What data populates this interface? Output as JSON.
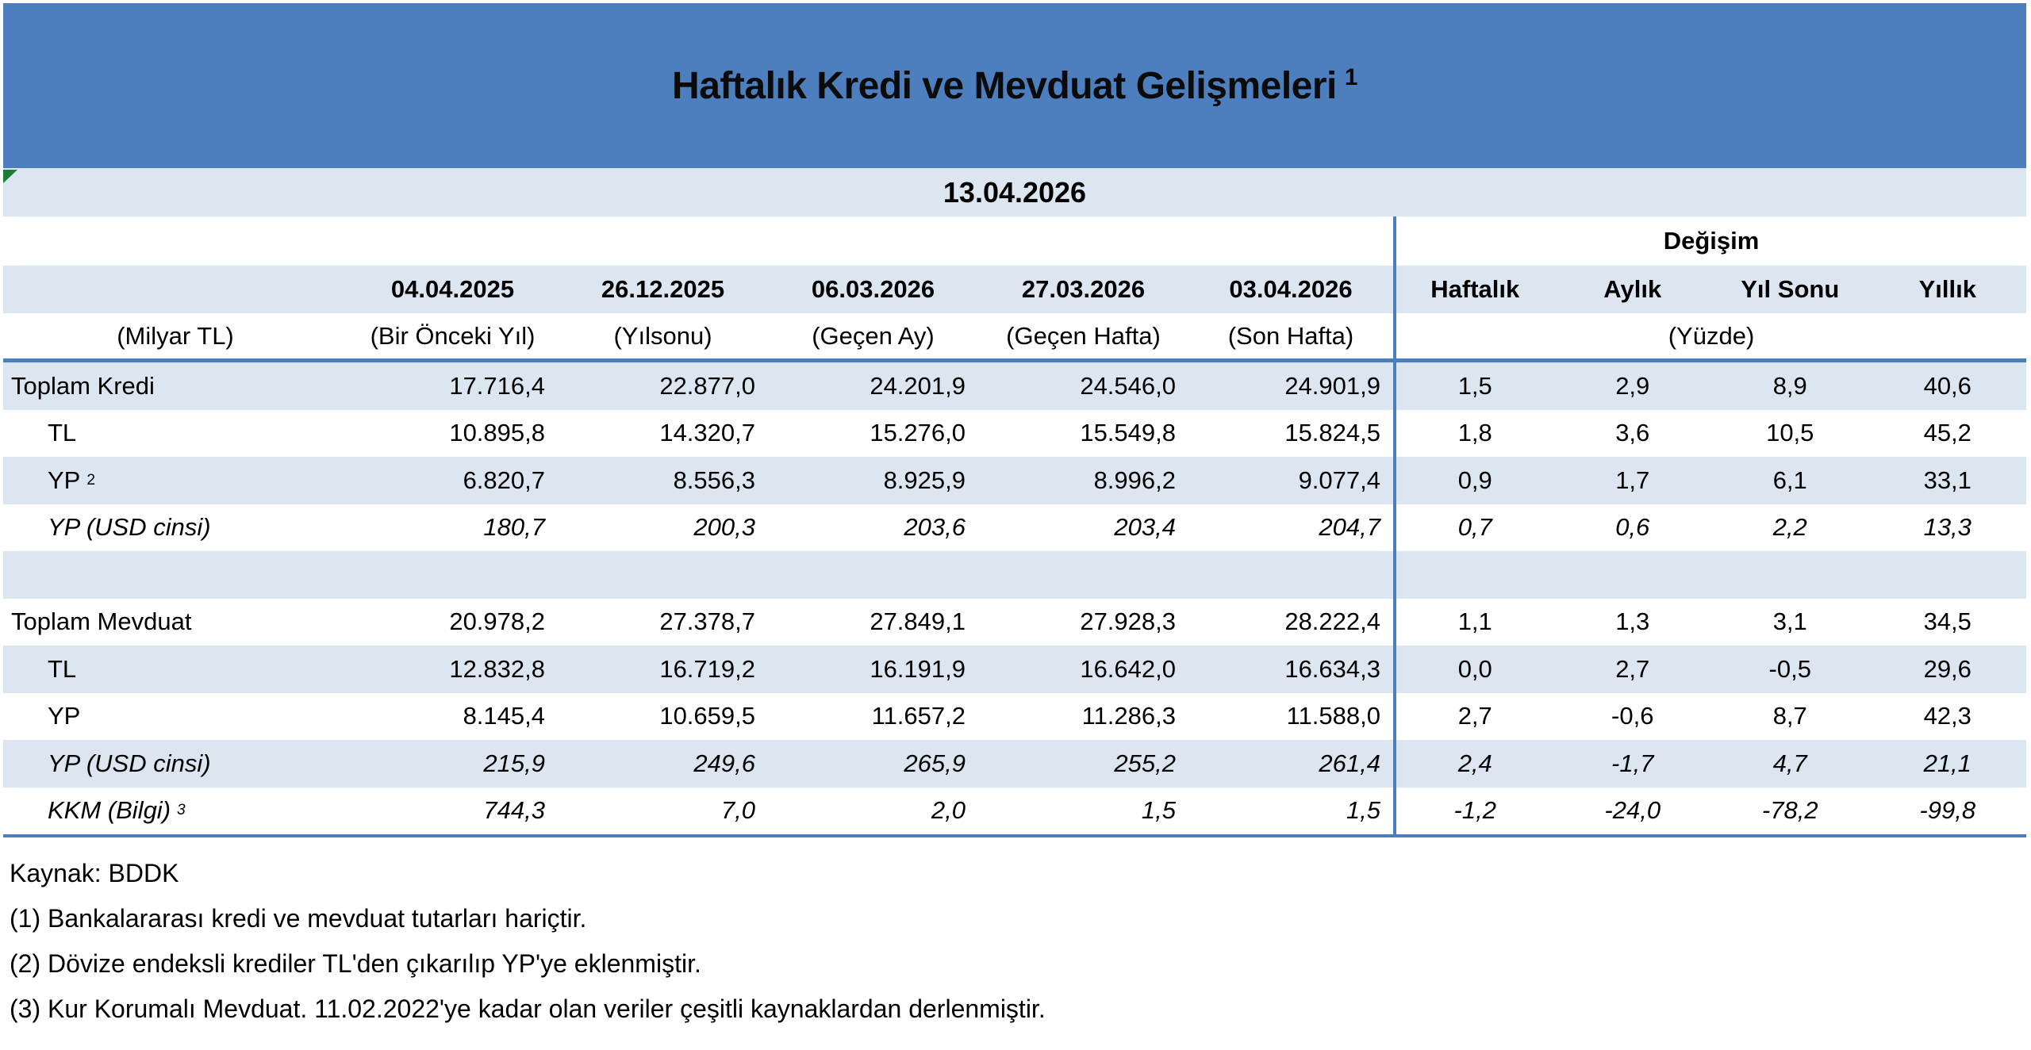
{
  "title": {
    "text": "Haftalık Kredi ve Mevduat Gelişmeleri",
    "superscript": "1"
  },
  "report_date": "13.04.2026",
  "header": {
    "change_group_label": "Değişim",
    "unit_label": "(Milyar TL)",
    "percent_label": "(Yüzde)",
    "date_columns": [
      {
        "date": "04.04.2025",
        "sub": "(Bir Önceki Yıl)"
      },
      {
        "date": "26.12.2025",
        "sub": "(Yılsonu)"
      },
      {
        "date": "06.03.2026",
        "sub": "(Geçen Ay)"
      },
      {
        "date": "27.03.2026",
        "sub": "(Geçen Hafta)"
      },
      {
        "date": "03.04.2026",
        "sub": "(Son Hafta)"
      }
    ],
    "change_columns": [
      "Haftalık",
      "Aylık",
      "Yıl Sonu",
      "Yıllık"
    ]
  },
  "rows": [
    {
      "label": "Toplam Kredi",
      "sup": "",
      "values": [
        "17.716,4",
        "22.877,0",
        "24.201,9",
        "24.546,0",
        "24.901,9"
      ],
      "changes": [
        "1,5",
        "2,9",
        "8,9",
        "40,6"
      ]
    },
    {
      "label": "TL",
      "sup": "",
      "values": [
        "10.895,8",
        "14.320,7",
        "15.276,0",
        "15.549,8",
        "15.824,5"
      ],
      "changes": [
        "1,8",
        "3,6",
        "10,5",
        "45,2"
      ]
    },
    {
      "label": "YP",
      "sup": "2",
      "values": [
        "6.820,7",
        "8.556,3",
        "8.925,9",
        "8.996,2",
        "9.077,4"
      ],
      "changes": [
        "0,9",
        "1,7",
        "6,1",
        "33,1"
      ]
    },
    {
      "label": "YP (USD cinsi)",
      "sup": "",
      "values": [
        "180,7",
        "200,3",
        "203,6",
        "203,4",
        "204,7"
      ],
      "changes": [
        "0,7",
        "0,6",
        "2,2",
        "13,3"
      ]
    },
    {
      "label": "",
      "sup": "",
      "values": [
        "",
        "",
        "",
        "",
        ""
      ],
      "changes": [
        "",
        "",
        "",
        ""
      ]
    },
    {
      "label": "Toplam Mevduat",
      "sup": "",
      "values": [
        "20.978,2",
        "27.378,7",
        "27.849,1",
        "27.928,3",
        "28.222,4"
      ],
      "changes": [
        "1,1",
        "1,3",
        "3,1",
        "34,5"
      ]
    },
    {
      "label": "TL",
      "sup": "",
      "values": [
        "12.832,8",
        "16.719,2",
        "16.191,9",
        "16.642,0",
        "16.634,3"
      ],
      "changes": [
        "0,0",
        "2,7",
        "-0,5",
        "29,6"
      ]
    },
    {
      "label": "YP",
      "sup": "",
      "values": [
        "8.145,4",
        "10.659,5",
        "11.657,2",
        "11.286,3",
        "11.588,0"
      ],
      "changes": [
        "2,7",
        "-0,6",
        "8,7",
        "42,3"
      ]
    },
    {
      "label": "YP (USD cinsi)",
      "sup": "",
      "values": [
        "215,9",
        "249,6",
        "265,9",
        "255,2",
        "261,4"
      ],
      "changes": [
        "2,4",
        "-1,7",
        "4,7",
        "21,1"
      ]
    },
    {
      "label": "KKM (Bilgi)",
      "sup": "3",
      "values": [
        "744,3",
        "7,0",
        "2,0",
        "1,5",
        "1,5"
      ],
      "changes": [
        "-1,2",
        "-24,0",
        "-78,2",
        "-99,8"
      ]
    }
  ],
  "footer": {
    "source": "Kaynak: BDDK",
    "notes": [
      "(1) Bankalararası kredi ve mevduat tutarları hariçtir.",
      "(2) Dövize endeksli krediler TL'den çıkarılıp YP'ye eklenmiştir.",
      "(3) Kur Korumalı Mevduat. 11.02.2022'ye kadar olan veriler çeşitli kaynaklardan derlenmiştir."
    ]
  },
  "colors": {
    "banner": "#4D7EBD",
    "stripe": "#DCE6F1",
    "line": "#4A7EBE",
    "flag": "#1E7B37",
    "ink": "#000000"
  }
}
